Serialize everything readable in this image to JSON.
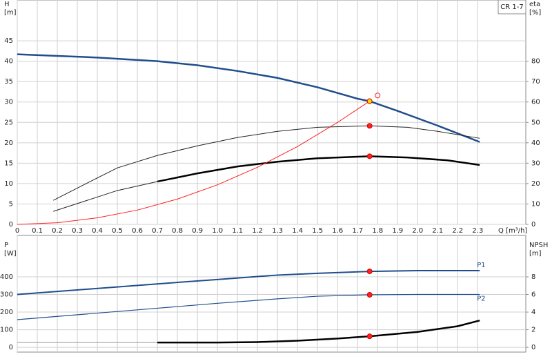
{
  "chart_data": [
    {
      "type": "line",
      "label_box": "CR 1-7",
      "ylabel": [
        "H",
        "[m]"
      ],
      "y2label": [
        "eta",
        "[%]"
      ],
      "xlabel": "Q [m³/h]",
      "xlim": [
        0,
        2.54
      ],
      "ylim": [
        0,
        55
      ],
      "y2lim": [
        0,
        110
      ],
      "grid": true,
      "xticks": [
        0,
        0.1,
        0.2,
        0.3,
        0.4,
        0.5,
        0.6,
        0.7,
        0.8,
        0.9,
        {
          "value": 1,
          "label": "1.0"
        },
        1.1,
        1.2,
        1.3,
        1.4,
        1.5,
        1.6,
        1.7,
        1.8,
        1.9,
        {
          "value": 2,
          "label": "2.0"
        },
        2.1,
        2.2,
        2.3
      ],
      "yticks": [
        0,
        5,
        10,
        15,
        20,
        25,
        30,
        35,
        40,
        45
      ],
      "y2ticks": [
        0,
        10,
        20,
        30,
        40,
        50,
        60,
        70,
        80
      ],
      "series": [
        {
          "color": "#1f4e8c",
          "width": 2.5,
          "x": [
            0,
            0.2,
            0.4,
            0.6,
            0.7,
            0.9,
            1.1,
            1.3,
            1.5,
            1.7,
            1.76,
            1.9,
            2.1,
            2.31
          ],
          "values": [
            41.7,
            41.3,
            40.9,
            40.3,
            40,
            39,
            37.6,
            35.9,
            33.6,
            30.8,
            30.2,
            27.8,
            24.2,
            20.2
          ]
        },
        {
          "color": "#222222",
          "width": 1,
          "axis": "y2",
          "x": [
            0.18,
            0.35,
            0.5,
            0.7,
            0.9,
            1.1,
            1.3,
            1.5,
            1.76,
            1.95,
            2.1,
            2.31
          ],
          "values": [
            11.8,
            20.3,
            27.7,
            33.8,
            38.5,
            42.6,
            45.6,
            47.6,
            48.3,
            47.6,
            45.6,
            42.2
          ]
        },
        {
          "color": "#222222",
          "width": 1,
          "axis": "y2",
          "x": [
            0.18,
            0.35,
            0.5,
            0.7
          ],
          "values": [
            6.4,
            11.8,
            16.6,
            21
          ]
        },
        {
          "color": "#000000",
          "width": 2.5,
          "axis": "y2",
          "x": [
            0.7,
            0.9,
            1.1,
            1.3,
            1.5,
            1.76,
            1.95,
            2.15,
            2.31
          ],
          "values": [
            21,
            25,
            28.4,
            30.7,
            32.4,
            33.4,
            32.8,
            31.4,
            29.1
          ]
        },
        {
          "color": "#ff2020",
          "width": 1,
          "x": [
            0,
            0.2,
            0.4,
            0.6,
            0.8,
            1,
            1.2,
            1.4,
            1.6,
            1.76
          ],
          "values": [
            0,
            0.4,
            1.6,
            3.5,
            6.2,
            9.7,
            14,
            19.1,
            25,
            30.2
          ]
        }
      ],
      "points": [
        {
          "x": 1.76,
          "y": 30.2,
          "color": "#ffd800"
        },
        {
          "x": 1.8,
          "y": 31.6,
          "color": "#ff2020",
          "hollow": true
        },
        {
          "x": 1.76,
          "y": 48.3,
          "color": "#ff2020",
          "axis": "y2"
        },
        {
          "x": 1.76,
          "y": 33.4,
          "color": "#ff2020",
          "axis": "y2"
        }
      ]
    },
    {
      "type": "line",
      "ylabel": [
        "P",
        "[W]"
      ],
      "y2label": [
        "NPSH",
        "[m]"
      ],
      "xlim": [
        0,
        2.54
      ],
      "ylim": [
        -27,
        635
      ],
      "y2lim": [
        -0.54,
        12.7
      ],
      "grid": true,
      "yticks": [
        0,
        100,
        200,
        300,
        400
      ],
      "y2ticks": [
        0,
        2,
        4,
        6,
        8
      ],
      "series": [
        {
          "name": "P1",
          "color": "#1f4e8c",
          "width": 2,
          "x": [
            0,
            0.7,
            1,
            1.3,
            1.5,
            1.76,
            2,
            2.31
          ],
          "values": [
            300,
            360,
            385,
            410,
            420,
            431,
            435,
            435
          ]
        },
        {
          "name": "P2",
          "color": "#1f4e8c",
          "width": 1.2,
          "x": [
            0,
            0.7,
            1,
            1.3,
            1.5,
            1.76,
            2,
            2.31
          ],
          "values": [
            157,
            222,
            250,
            275,
            290,
            298,
            300,
            300
          ]
        },
        {
          "color": "#999999",
          "width": 1,
          "axis": "y2",
          "x": [
            0,
            0.7
          ],
          "values": [
            0.55,
            0.55
          ]
        },
        {
          "color": "#000000",
          "width": 2.5,
          "axis": "y2",
          "x": [
            0.7,
            1,
            1.2,
            1.4,
            1.6,
            1.76,
            2,
            2.2,
            2.31
          ],
          "values": [
            0.55,
            0.55,
            0.6,
            0.75,
            1,
            1.25,
            1.75,
            2.4,
            3.05
          ]
        }
      ],
      "points": [
        {
          "x": 1.76,
          "y": 431,
          "color": "#ff2020"
        },
        {
          "x": 1.76,
          "y": 298,
          "color": "#ff2020"
        },
        {
          "x": 1.76,
          "y": 1.25,
          "color": "#ff2020",
          "axis": "y2"
        }
      ]
    }
  ]
}
